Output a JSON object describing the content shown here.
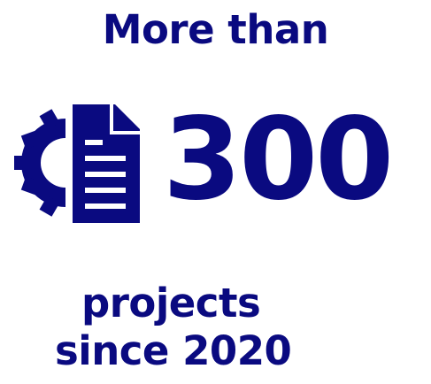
{
  "headline": "More than",
  "stat": {
    "value": "300",
    "icon": "gear-document-icon"
  },
  "caption": {
    "line1": "projects",
    "line2": "since 2020"
  },
  "colors": {
    "text": "#0a0a80",
    "background": "#ffffff"
  }
}
